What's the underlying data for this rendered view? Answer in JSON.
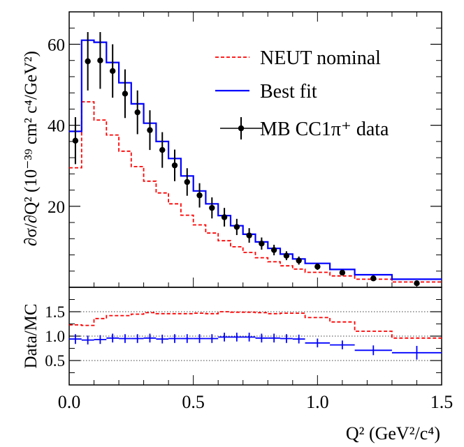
{
  "chart_data": [
    {
      "type": "line",
      "panel": "main",
      "ylabel": "∂σ/∂Q² (10⁻³⁹ cm² c⁴/GeV²)",
      "xlim": [
        0,
        1.5
      ],
      "ylim": [
        0,
        68
      ],
      "yticks": [
        20,
        40,
        60
      ],
      "bin_edges": [
        0.0,
        0.05,
        0.1,
        0.15,
        0.2,
        0.25,
        0.3,
        0.35,
        0.4,
        0.45,
        0.5,
        0.55,
        0.6,
        0.65,
        0.7,
        0.75,
        0.8,
        0.85,
        0.9,
        0.95,
        1.05,
        1.15,
        1.3,
        1.5
      ],
      "series": [
        {
          "name": "NEUT nominal",
          "style": "dashed-step",
          "color": "#ff0000",
          "values": [
            29.5,
            45.8,
            41.3,
            37.6,
            33.6,
            29.8,
            26.2,
            23.3,
            20.6,
            17.8,
            15.4,
            13.4,
            11.5,
            10.0,
            8.6,
            7.3,
            6.3,
            5.3,
            4.5,
            3.7,
            2.8,
            2.0,
            1.3
          ]
        },
        {
          "name": "Best fit",
          "style": "solid-step",
          "color": "#0000ff",
          "values": [
            38.5,
            61.0,
            60.5,
            55.5,
            50.5,
            45.3,
            40.5,
            36.0,
            31.8,
            27.5,
            23.8,
            20.6,
            17.7,
            15.2,
            13.1,
            11.2,
            9.6,
            8.2,
            7.0,
            5.9,
            4.4,
            3.1,
            2.0
          ]
        },
        {
          "name": "MB CC1π⁺ data",
          "style": "points",
          "color": "#000000",
          "x": [
            0.025,
            0.075,
            0.125,
            0.175,
            0.225,
            0.275,
            0.325,
            0.375,
            0.425,
            0.475,
            0.525,
            0.575,
            0.625,
            0.675,
            0.725,
            0.775,
            0.825,
            0.875,
            0.925,
            1.0,
            1.1,
            1.225,
            1.4
          ],
          "y": [
            36.2,
            55.8,
            56.0,
            53.4,
            47.8,
            43.2,
            38.8,
            33.9,
            30.1,
            26.0,
            22.7,
            19.6,
            17.3,
            14.9,
            12.8,
            10.8,
            9.2,
            7.8,
            6.6,
            5.1,
            3.6,
            2.2,
            1.0
          ],
          "yerr": [
            5.8,
            7.2,
            7.0,
            6.6,
            6.0,
            5.4,
            4.9,
            4.4,
            3.9,
            3.4,
            3.0,
            2.6,
            2.3,
            2.0,
            1.8,
            1.5,
            1.3,
            1.1,
            1.0,
            0.8,
            0.6,
            0.4,
            0.3
          ]
        }
      ],
      "legend": {
        "placement": "top-right"
      }
    },
    {
      "type": "line",
      "panel": "ratio",
      "ylabel": "Data/MC",
      "xlabel": "Q² (GeV²/c⁴)",
      "xlim": [
        0,
        1.5
      ],
      "ylim": [
        0,
        2
      ],
      "yticks": [
        0.5,
        1.0,
        1.5
      ],
      "ytick_labels": [
        "0.5",
        "1.0",
        "1.5"
      ],
      "xticks": [
        0.0,
        0.5,
        1.0,
        1.5
      ],
      "xtick_labels": [
        "0.0",
        "0.5",
        "1.0",
        "1.5"
      ],
      "reference_lines": [
        0.5,
        1.0,
        1.5
      ],
      "series": [
        {
          "name": "NEUT nominal",
          "style": "dashed-step",
          "color": "#ff0000",
          "values": [
            1.23,
            1.22,
            1.36,
            1.42,
            1.42,
            1.45,
            1.48,
            1.46,
            1.46,
            1.46,
            1.47,
            1.46,
            1.5,
            1.49,
            1.49,
            1.48,
            1.46,
            1.47,
            1.47,
            1.38,
            1.29,
            1.1,
            0.96
          ]
        },
        {
          "name": "Best fit",
          "style": "crosses",
          "color": "#0000ff",
          "values": [
            0.94,
            0.92,
            0.93,
            0.96,
            0.95,
            0.95,
            0.96,
            0.94,
            0.95,
            0.95,
            0.95,
            0.95,
            0.98,
            0.98,
            0.98,
            0.96,
            0.96,
            0.95,
            0.94,
            0.86,
            0.82,
            0.71,
            0.66
          ],
          "yerr": [
            0.1,
            0.09,
            0.09,
            0.09,
            0.09,
            0.09,
            0.09,
            0.09,
            0.09,
            0.09,
            0.09,
            0.09,
            0.09,
            0.09,
            0.09,
            0.09,
            0.09,
            0.09,
            0.09,
            0.09,
            0.09,
            0.1,
            0.14
          ]
        }
      ]
    }
  ]
}
